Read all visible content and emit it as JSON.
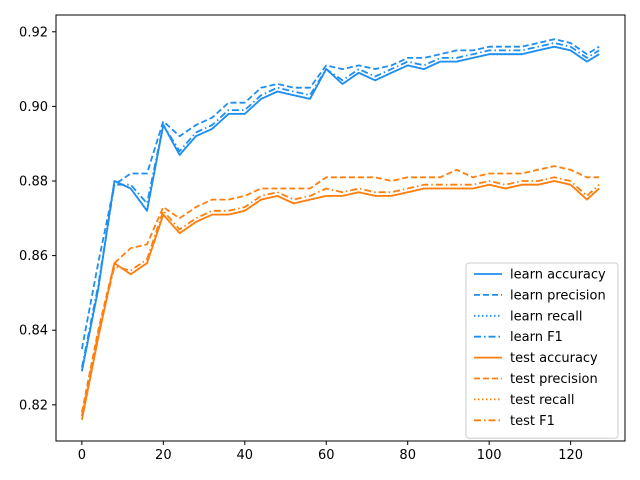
{
  "chart_data": {
    "type": "line",
    "title": "",
    "xlabel": "",
    "ylabel": "",
    "xlim": [
      -6.35,
      133.35
    ],
    "ylim": [
      0.8103,
      0.9245
    ],
    "xticks": [
      0,
      20,
      40,
      60,
      80,
      100,
      120
    ],
    "xtick_labels": [
      "0",
      "20",
      "40",
      "60",
      "80",
      "100",
      "120"
    ],
    "yticks": [
      0.82,
      0.84,
      0.86,
      0.88,
      0.9,
      0.92
    ],
    "ytick_labels": [
      "0.82",
      "0.84",
      "0.86",
      "0.88",
      "0.90",
      "0.92"
    ],
    "grid": false,
    "legend_position": "lower-right",
    "colors": {
      "learn": "#1f8ef1",
      "test": "#ff7f0e"
    },
    "x": [
      0,
      4,
      8,
      12,
      16,
      20,
      24,
      28,
      32,
      36,
      40,
      44,
      48,
      52,
      56,
      60,
      64,
      68,
      72,
      76,
      80,
      84,
      88,
      92,
      96,
      100,
      104,
      108,
      112,
      116,
      120,
      124,
      127
    ],
    "series": [
      {
        "name": "learn accuracy",
        "group": "learn",
        "dash": "solid",
        "values": [
          0.829,
          0.851,
          0.88,
          0.878,
          0.872,
          0.895,
          0.887,
          0.892,
          0.894,
          0.898,
          0.898,
          0.902,
          0.904,
          0.903,
          0.902,
          0.91,
          0.906,
          0.909,
          0.907,
          0.909,
          0.911,
          0.91,
          0.912,
          0.912,
          0.913,
          0.914,
          0.914,
          0.914,
          0.915,
          0.916,
          0.915,
          0.912,
          0.914
        ]
      },
      {
        "name": "learn precision",
        "group": "learn",
        "dash": "dashed",
        "values": [
          0.835,
          0.858,
          0.879,
          0.882,
          0.882,
          0.896,
          0.892,
          0.895,
          0.897,
          0.901,
          0.901,
          0.905,
          0.906,
          0.905,
          0.905,
          0.911,
          0.91,
          0.911,
          0.91,
          0.911,
          0.913,
          0.913,
          0.914,
          0.915,
          0.915,
          0.916,
          0.916,
          0.916,
          0.917,
          0.918,
          0.917,
          0.914,
          0.916
        ]
      },
      {
        "name": "learn recall",
        "group": "learn",
        "dash": "dotted",
        "values": [
          0.829,
          0.851,
          0.88,
          0.878,
          0.872,
          0.895,
          0.887,
          0.892,
          0.894,
          0.898,
          0.898,
          0.902,
          0.904,
          0.903,
          0.902,
          0.91,
          0.906,
          0.909,
          0.907,
          0.909,
          0.911,
          0.91,
          0.912,
          0.912,
          0.913,
          0.914,
          0.914,
          0.914,
          0.915,
          0.916,
          0.915,
          0.912,
          0.914
        ]
      },
      {
        "name": "learn F1",
        "group": "learn",
        "dash": "dashdot",
        "values": [
          0.83,
          0.852,
          0.879,
          0.879,
          0.874,
          0.895,
          0.888,
          0.893,
          0.895,
          0.899,
          0.899,
          0.903,
          0.905,
          0.904,
          0.903,
          0.91,
          0.907,
          0.91,
          0.908,
          0.91,
          0.912,
          0.911,
          0.913,
          0.913,
          0.914,
          0.915,
          0.915,
          0.915,
          0.916,
          0.917,
          0.916,
          0.913,
          0.915
        ]
      },
      {
        "name": "test accuracy",
        "group": "test",
        "dash": "solid",
        "values": [
          0.816,
          0.838,
          0.858,
          0.855,
          0.858,
          0.871,
          0.866,
          0.869,
          0.871,
          0.871,
          0.872,
          0.875,
          0.876,
          0.874,
          0.875,
          0.876,
          0.876,
          0.877,
          0.876,
          0.876,
          0.877,
          0.878,
          0.878,
          0.878,
          0.878,
          0.879,
          0.878,
          0.879,
          0.879,
          0.88,
          0.879,
          0.875,
          0.878
        ]
      },
      {
        "name": "test precision",
        "group": "test",
        "dash": "dashed",
        "values": [
          0.818,
          0.84,
          0.858,
          0.862,
          0.863,
          0.873,
          0.87,
          0.873,
          0.875,
          0.875,
          0.876,
          0.878,
          0.878,
          0.878,
          0.878,
          0.881,
          0.881,
          0.881,
          0.881,
          0.88,
          0.881,
          0.881,
          0.881,
          0.883,
          0.881,
          0.882,
          0.882,
          0.882,
          0.883,
          0.884,
          0.883,
          0.881,
          0.881
        ]
      },
      {
        "name": "test recall",
        "group": "test",
        "dash": "dotted",
        "values": [
          0.816,
          0.838,
          0.858,
          0.855,
          0.858,
          0.871,
          0.866,
          0.869,
          0.871,
          0.871,
          0.872,
          0.875,
          0.876,
          0.874,
          0.875,
          0.876,
          0.876,
          0.877,
          0.876,
          0.876,
          0.877,
          0.878,
          0.878,
          0.878,
          0.878,
          0.879,
          0.878,
          0.879,
          0.879,
          0.88,
          0.879,
          0.875,
          0.878
        ]
      },
      {
        "name": "test F1",
        "group": "test",
        "dash": "dashdot",
        "values": [
          0.817,
          0.839,
          0.857,
          0.856,
          0.859,
          0.872,
          0.867,
          0.87,
          0.872,
          0.872,
          0.873,
          0.876,
          0.877,
          0.875,
          0.876,
          0.878,
          0.877,
          0.878,
          0.877,
          0.877,
          0.878,
          0.879,
          0.879,
          0.879,
          0.879,
          0.88,
          0.879,
          0.88,
          0.88,
          0.881,
          0.88,
          0.876,
          0.879
        ]
      }
    ]
  }
}
